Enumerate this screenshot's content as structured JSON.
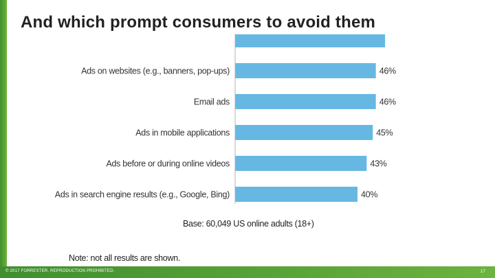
{
  "slide": {
    "title": "And which prompt consumers to avoid them",
    "note": "Note: not all results are shown.",
    "base": "Base: 60,049 US online adults (18+)",
    "copyright": "© 2017 FORRESTER. REPRODUCTION PROHIBITED.",
    "page_number": "17"
  },
  "colors": {
    "bar": "#66b8e3",
    "brand_green": "#4e9e35"
  },
  "chart_data": {
    "type": "bar",
    "orientation": "horizontal",
    "categories": [
      "",
      "Ads on websites (e.g., banners, pop-ups)",
      "Email ads",
      "Ads in mobile applications",
      "Ads before or during online videos",
      "Ads in search engine results (e.g., Google, Bing)"
    ],
    "values": [
      49,
      46,
      46,
      45,
      43,
      40
    ],
    "labels": [
      "",
      "46%",
      "46%",
      "45%",
      "43%",
      "40%"
    ],
    "xlim": [
      0,
      50
    ],
    "title": "",
    "xlabel": "",
    "ylabel": ""
  }
}
